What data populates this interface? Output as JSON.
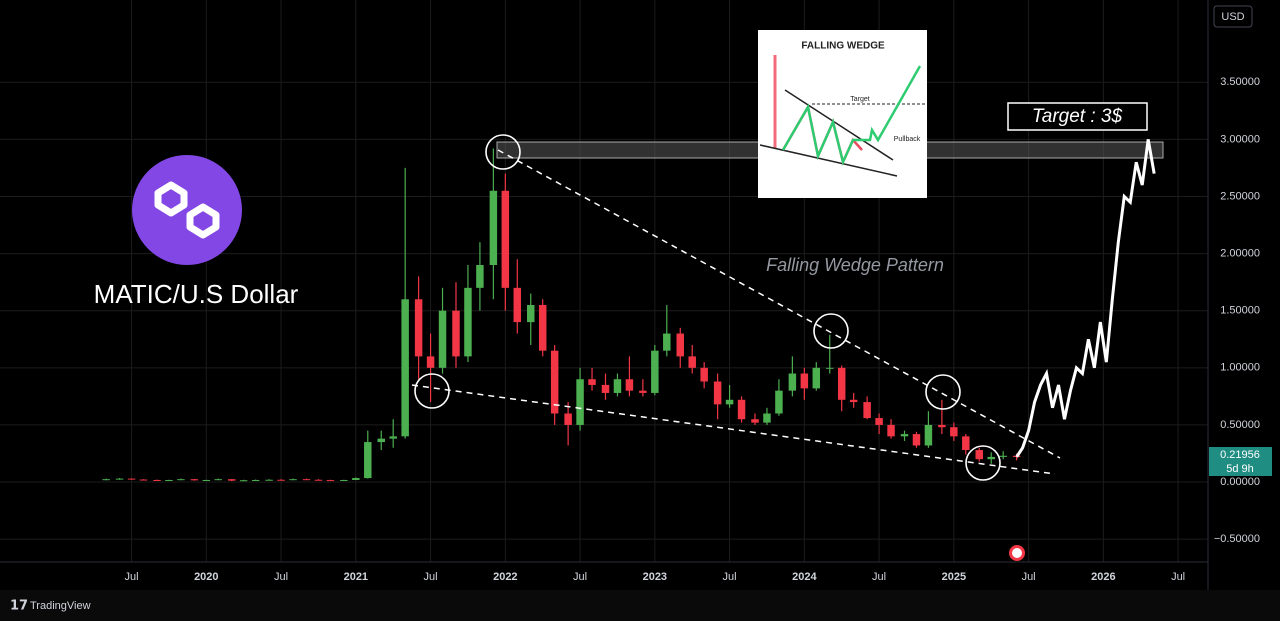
{
  "chart_data": {
    "type": "candlestick",
    "title": "MATIC/U.S Dollar",
    "annotation": "Falling Wedge Pattern",
    "target_label": "Target : 3$",
    "currency": "USD",
    "countdown": "5d 9h",
    "up_color": "#4caf50",
    "down_color": "#f23645",
    "grid": true,
    "xlim": [
      2018.62,
      2026.7
    ],
    "ylim": [
      -0.7,
      4.22
    ],
    "xticks": [
      {
        "value": 2019.5,
        "label": "Jul"
      },
      2020,
      {
        "value": 2020.5,
        "label": "Jul"
      },
      2021,
      {
        "value": 2021.5,
        "label": "Jul"
      },
      2022,
      {
        "value": 2022.5,
        "label": "Jul"
      },
      2023,
      {
        "value": 2023.5,
        "label": "Jul"
      },
      2024,
      {
        "value": 2024.5,
        "label": "Jul"
      },
      2025,
      {
        "value": 2025.5,
        "label": "Jul"
      },
      2026,
      {
        "value": 2026.5,
        "label": "Jul"
      }
    ],
    "yticks": [
      {
        "value": -0.5,
        "label": "−0.50000"
      },
      {
        "value": 0,
        "label": "0.00000"
      },
      {
        "value": 0.5,
        "label": "0.50000"
      },
      {
        "value": 1,
        "label": "1.00000"
      },
      {
        "value": 1.5,
        "label": "1.50000"
      },
      {
        "value": 2,
        "label": "2.00000"
      },
      {
        "value": 2.5,
        "label": "2.50000"
      },
      {
        "value": 3,
        "label": "3.00000"
      },
      {
        "value": 3.5,
        "label": "3.50000"
      }
    ],
    "x": [
      2019.33,
      2019.42,
      2019.5,
      2019.58,
      2019.67,
      2019.75,
      2019.83,
      2019.92,
      2020.0,
      2020.08,
      2020.17,
      2020.25,
      2020.33,
      2020.42,
      2020.5,
      2020.58,
      2020.67,
      2020.75,
      2020.83,
      2020.92,
      2021.0,
      2021.08,
      2021.17,
      2021.25,
      2021.33,
      2021.42,
      2021.5,
      2021.58,
      2021.67,
      2021.75,
      2021.83,
      2021.92,
      2022.0,
      2022.08,
      2022.17,
      2022.25,
      2022.33,
      2022.42,
      2022.5,
      2022.58,
      2022.67,
      2022.75,
      2022.83,
      2022.92,
      2023.0,
      2023.08,
      2023.17,
      2023.25,
      2023.33,
      2023.42,
      2023.5,
      2023.58,
      2023.67,
      2023.75,
      2023.83,
      2023.92,
      2024.0,
      2024.08,
      2024.17,
      2024.25,
      2024.33,
      2024.42,
      2024.5,
      2024.58,
      2024.67,
      2024.75,
      2024.83,
      2024.92,
      2025.0,
      2025.08,
      2025.17,
      2025.25,
      2025.33,
      2025.42
    ],
    "open": [
      0.02,
      0.025,
      0.03,
      0.022,
      0.018,
      0.015,
      0.018,
      0.025,
      0.015,
      0.018,
      0.025,
      0.012,
      0.016,
      0.018,
      0.02,
      0.018,
      0.025,
      0.02,
      0.017,
      0.016,
      0.018,
      0.035,
      0.35,
      0.38,
      0.4,
      1.6,
      1.1,
      1.0,
      1.5,
      1.1,
      1.7,
      1.9,
      2.55,
      1.7,
      1.4,
      1.55,
      1.15,
      0.6,
      0.5,
      0.9,
      0.85,
      0.78,
      0.9,
      0.8,
      0.78,
      1.15,
      1.3,
      1.1,
      1.0,
      0.88,
      0.68,
      0.72,
      0.55,
      0.52,
      0.6,
      0.8,
      0.95,
      0.82,
      1.0,
      1.0,
      0.72,
      0.7,
      0.56,
      0.5,
      0.4,
      0.42,
      0.32,
      0.5,
      0.48,
      0.4,
      0.28,
      0.2,
      0.22,
      0.23
    ],
    "high": [
      0.03,
      0.035,
      0.032,
      0.025,
      0.022,
      0.02,
      0.03,
      0.026,
      0.02,
      0.03,
      0.026,
      0.02,
      0.022,
      0.025,
      0.025,
      0.03,
      0.03,
      0.025,
      0.02,
      0.02,
      0.04,
      0.45,
      0.45,
      0.55,
      2.75,
      1.8,
      1.3,
      1.7,
      1.75,
      1.9,
      2.1,
      2.92,
      2.7,
      1.95,
      1.65,
      1.6,
      1.2,
      0.7,
      1.0,
      1.0,
      0.95,
      0.95,
      1.1,
      0.9,
      1.2,
      1.55,
      1.35,
      1.2,
      1.05,
      0.95,
      0.85,
      0.75,
      0.6,
      0.65,
      0.9,
      1.1,
      1.0,
      1.05,
      1.29,
      1.02,
      0.78,
      0.75,
      0.6,
      0.55,
      0.45,
      0.44,
      0.62,
      0.72,
      0.52,
      0.42,
      0.3,
      0.26,
      0.27,
      0.25
    ],
    "low": [
      0.015,
      0.02,
      0.02,
      0.015,
      0.012,
      0.012,
      0.016,
      0.012,
      0.013,
      0.017,
      0.008,
      0.01,
      0.014,
      0.016,
      0.015,
      0.016,
      0.018,
      0.015,
      0.014,
      0.015,
      0.017,
      0.03,
      0.28,
      0.3,
      0.38,
      0.9,
      0.7,
      0.95,
      1.0,
      1.05,
      1.5,
      1.6,
      1.5,
      1.3,
      1.2,
      1.1,
      0.5,
      0.32,
      0.45,
      0.8,
      0.72,
      0.75,
      0.75,
      0.75,
      0.76,
      1.1,
      1.0,
      0.95,
      0.82,
      0.55,
      0.65,
      0.52,
      0.5,
      0.5,
      0.58,
      0.75,
      0.72,
      0.8,
      0.95,
      0.62,
      0.65,
      0.55,
      0.42,
      0.38,
      0.36,
      0.3,
      0.3,
      0.42,
      0.36,
      0.24,
      0.18,
      0.16,
      0.2,
      0.19
    ],
    "close": [
      0.025,
      0.03,
      0.022,
      0.018,
      0.015,
      0.018,
      0.025,
      0.015,
      0.018,
      0.025,
      0.012,
      0.016,
      0.018,
      0.02,
      0.018,
      0.025,
      0.02,
      0.017,
      0.016,
      0.018,
      0.035,
      0.35,
      0.38,
      0.4,
      1.6,
      1.1,
      1.0,
      1.5,
      1.1,
      1.7,
      1.9,
      2.55,
      1.7,
      1.4,
      1.55,
      1.15,
      0.6,
      0.5,
      0.9,
      0.85,
      0.78,
      0.9,
      0.8,
      0.78,
      1.15,
      1.3,
      1.1,
      1.0,
      0.88,
      0.68,
      0.72,
      0.55,
      0.52,
      0.6,
      0.8,
      0.95,
      0.82,
      1.0,
      1.0,
      0.72,
      0.7,
      0.56,
      0.5,
      0.4,
      0.42,
      0.32,
      0.5,
      0.48,
      0.4,
      0.28,
      0.2,
      0.22,
      0.23,
      0.21956
    ],
    "projection_color": "#ffffff",
    "projection_x": [
      2025.42,
      2025.46,
      2025.5,
      2025.54,
      2025.58,
      2025.62,
      2025.66,
      2025.7,
      2025.74,
      2025.78,
      2025.82,
      2025.86,
      2025.9,
      2025.94,
      2025.98,
      2026.02,
      2026.06,
      2026.1,
      2026.14,
      2026.18,
      2026.22,
      2026.26,
      2026.3,
      2026.34
    ],
    "projection_values": [
      0.22,
      0.3,
      0.45,
      0.7,
      0.85,
      0.95,
      0.65,
      0.85,
      0.55,
      0.8,
      1.0,
      0.95,
      1.25,
      1.0,
      1.4,
      1.05,
      1.6,
      2.1,
      2.5,
      2.45,
      2.8,
      2.6,
      3.0,
      2.7
    ]
  },
  "inset": {
    "title": "FALLING WEDGE",
    "target": "Target",
    "pullback": "Pullback"
  },
  "footer": {
    "brand": "TradingView"
  }
}
